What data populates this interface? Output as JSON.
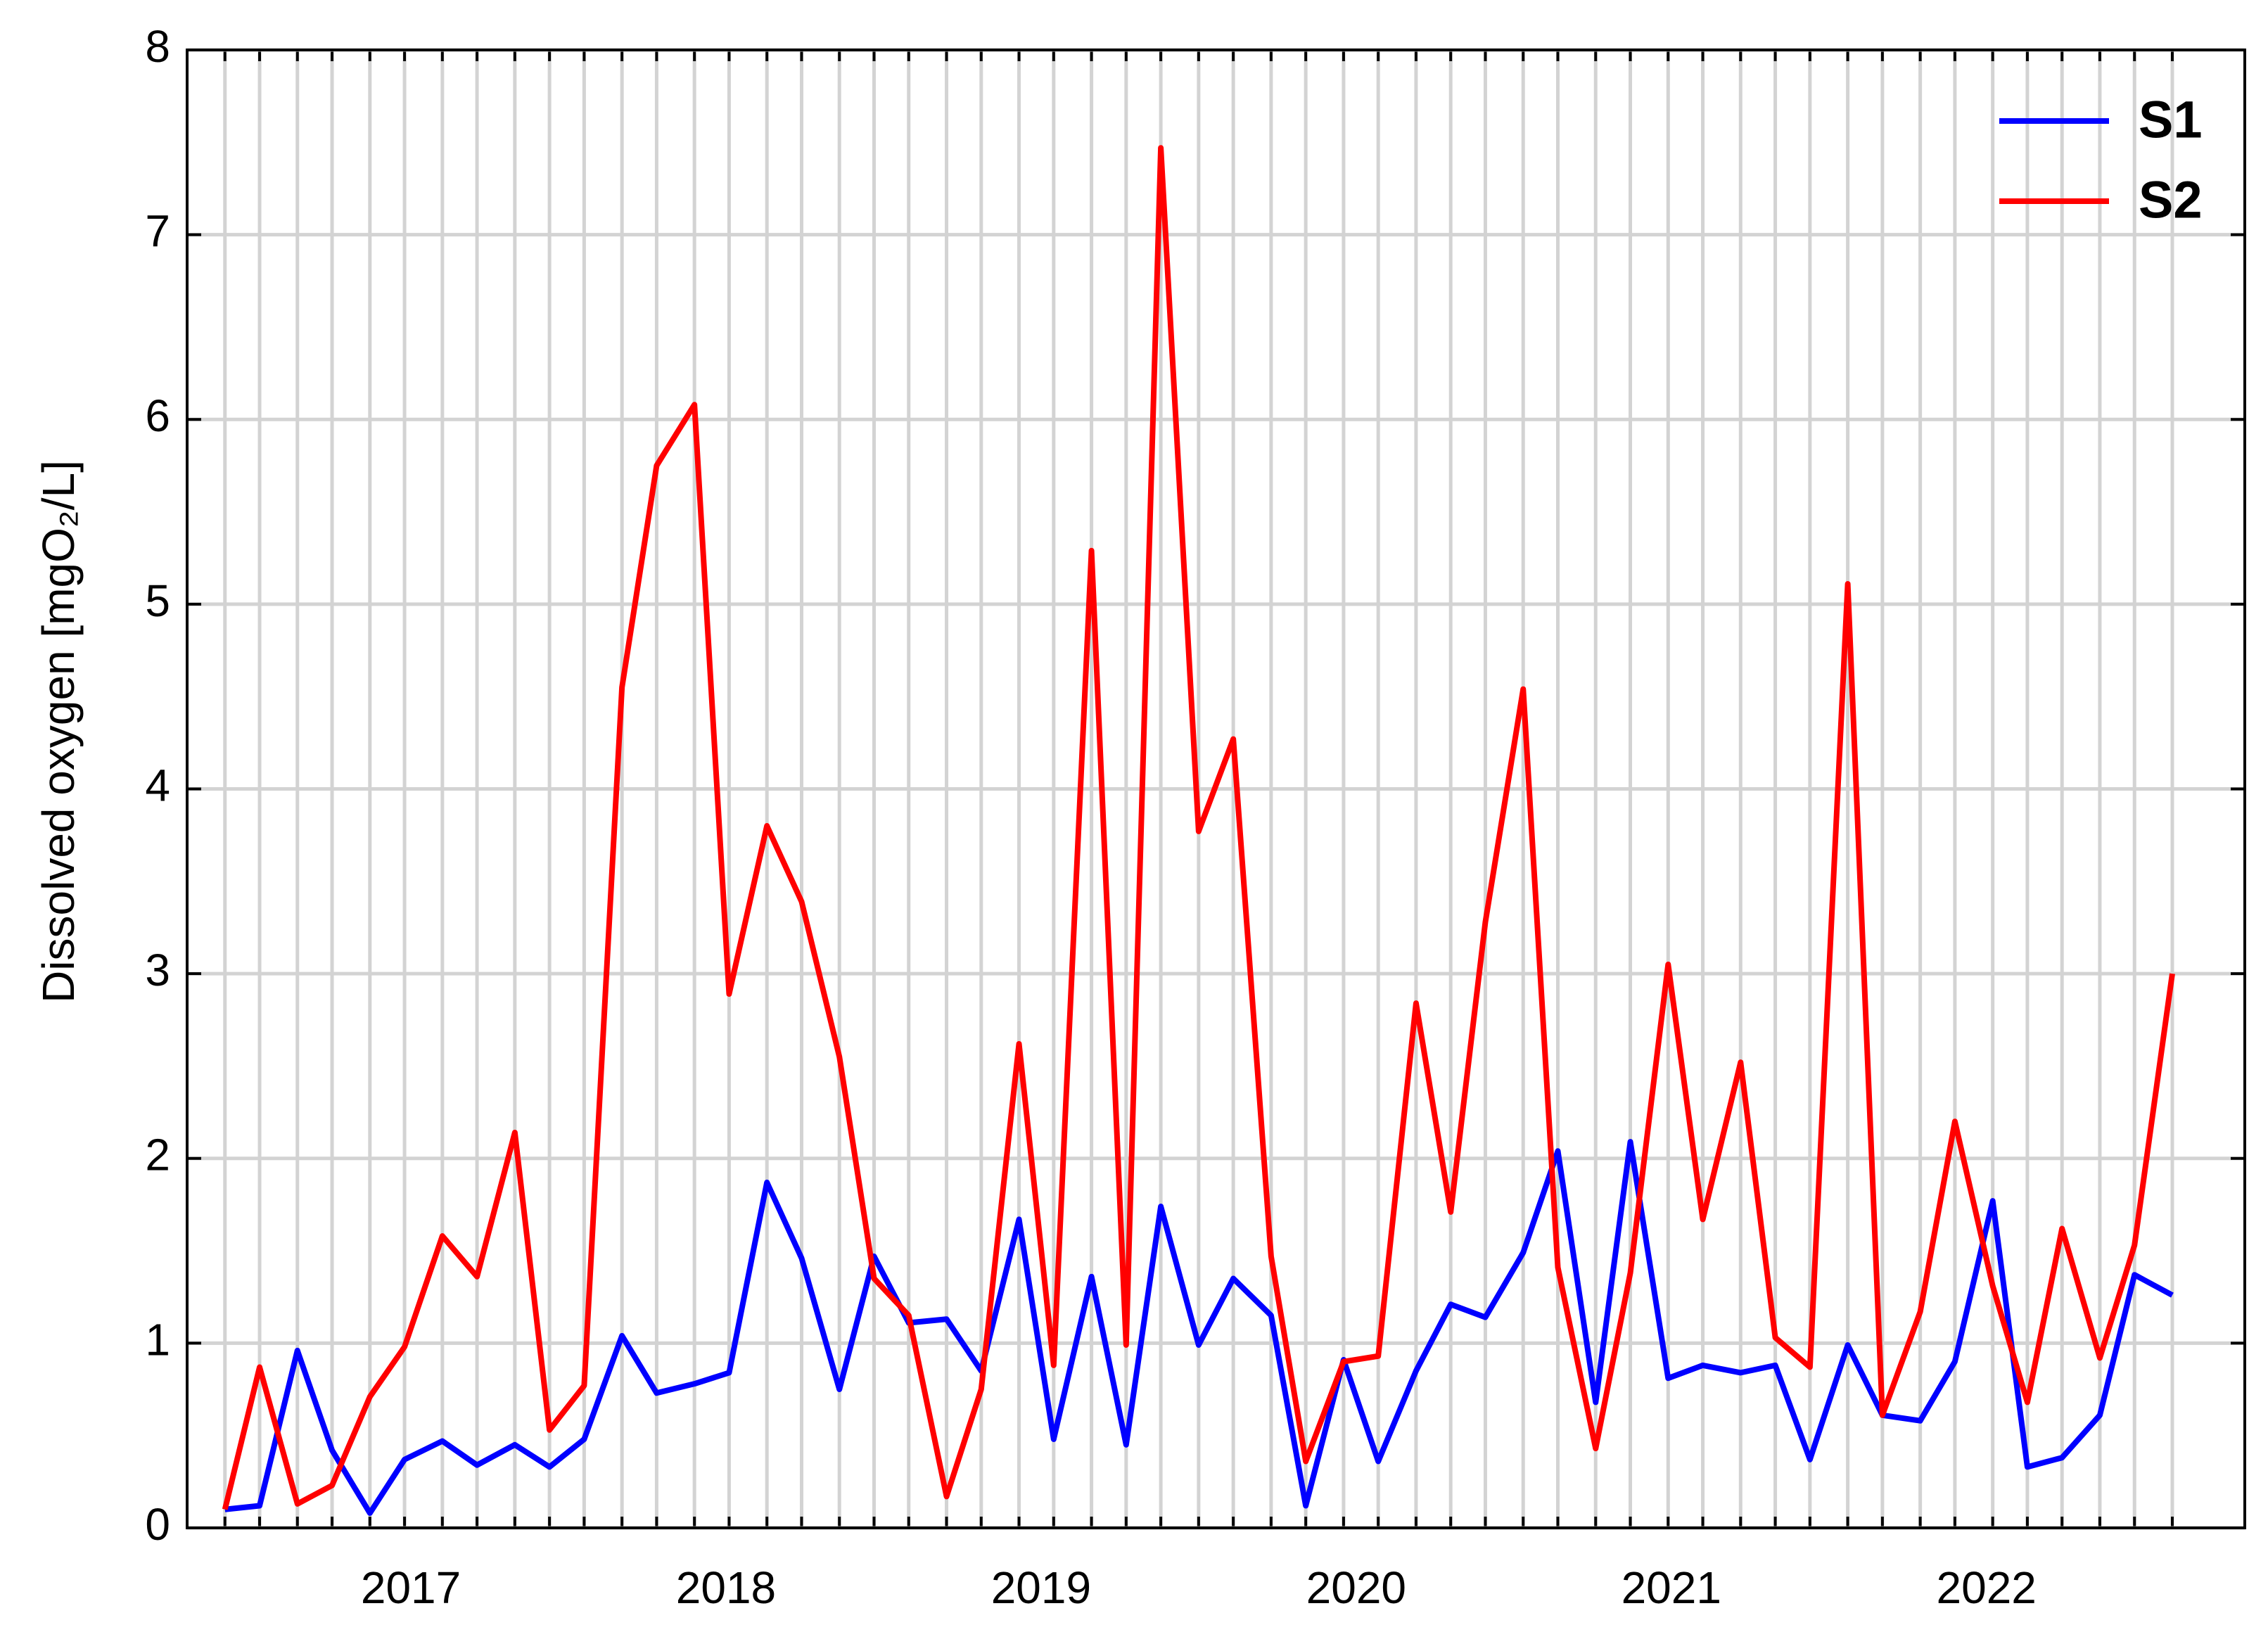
{
  "chart_data": {
    "type": "line",
    "ylabel": "Dissolved oxygen [mgO₂/L]",
    "x": [
      2016.41,
      2016.52,
      2016.64,
      2016.75,
      2016.87,
      2016.98,
      2017.1,
      2017.21,
      2017.33,
      2017.44,
      2017.55,
      2017.67,
      2017.78,
      2017.9,
      2018.01,
      2018.13,
      2018.24,
      2018.36,
      2018.47,
      2018.58,
      2018.7,
      2018.81,
      2018.93,
      2019.04,
      2019.16,
      2019.27,
      2019.38,
      2019.5,
      2019.61,
      2019.73,
      2019.84,
      2019.96,
      2020.07,
      2020.19,
      2020.3,
      2020.41,
      2020.53,
      2020.64,
      2020.76,
      2020.87,
      2020.99,
      2021.1,
      2021.22,
      2021.33,
      2021.44,
      2021.56,
      2021.67,
      2021.79,
      2021.9,
      2022.02,
      2022.13,
      2022.24,
      2022.36,
      2022.47,
      2022.59
    ],
    "series": [
      {
        "name": "S1",
        "color": "#0000ff",
        "values": [
          0.1,
          0.12,
          0.96,
          0.42,
          0.08,
          0.37,
          0.47,
          0.34,
          0.45,
          0.33,
          0.48,
          1.04,
          0.73,
          0.78,
          0.84,
          1.87,
          1.46,
          0.75,
          1.47,
          1.11,
          1.13,
          0.85,
          1.67,
          0.48,
          1.36,
          0.45,
          1.74,
          0.99,
          1.35,
          1.15,
          0.12,
          0.91,
          0.36,
          0.85,
          1.21,
          1.14,
          1.49,
          2.04,
          0.68,
          2.09,
          0.81,
          0.88,
          0.84,
          0.88,
          0.37,
          0.99,
          0.61,
          0.58,
          0.9,
          1.77,
          0.33,
          0.38,
          0.61,
          1.37,
          1.26
        ]
      },
      {
        "name": "S2",
        "color": "#ff0000",
        "values": [
          0.1,
          0.87,
          0.13,
          0.23,
          0.71,
          0.98,
          1.58,
          1.36,
          2.14,
          0.53,
          0.77,
          4.55,
          5.75,
          6.08,
          2.89,
          3.8,
          3.39,
          2.55,
          1.35,
          1.15,
          0.17,
          0.75,
          2.62,
          0.88,
          5.29,
          0.99,
          7.47,
          3.77,
          4.27,
          1.47,
          0.36,
          0.9,
          0.93,
          2.84,
          1.71,
          3.28,
          4.54,
          1.41,
          0.43,
          1.38,
          3.05,
          1.67,
          2.52,
          1.03,
          0.87,
          5.11,
          0.61,
          1.17,
          2.2,
          1.31,
          0.68,
          1.62,
          0.92,
          1.53,
          3.0
        ]
      }
    ],
    "xlim": [
      2016.29,
      2022.82
    ],
    "xticks": [
      2017,
      2018,
      2019,
      2020,
      2021,
      2022
    ],
    "ylim": [
      0,
      8
    ],
    "yticks": [
      0,
      1,
      2,
      3,
      4,
      5,
      6,
      7,
      8
    ],
    "grid": true,
    "legend": "upper right"
  }
}
